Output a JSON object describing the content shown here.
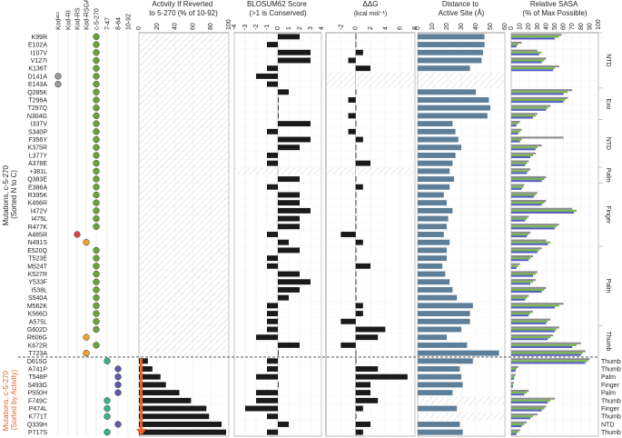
{
  "chart_data": {
    "type": "bar",
    "y_axis_title": "Mutations, c-5-270 (Sorted N to C)",
    "y_axis_title_lines": [
      "Mutations, c-5-270",
      "(Sorted N to C)"
    ],
    "y_axis_title_bottom": "Mutations, c-5-270 (Sorted by Activity)",
    "y_axis_title_bottom_lines": [
      "Mutations, c-5-270",
      "(Sorted by Activity)"
    ],
    "mutations": [
      "K99R",
      "E102A",
      "I107V",
      "V127I",
      "K136T",
      "D141A",
      "E143A",
      "Q285K",
      "T296A",
      "T297Q",
      "N304G",
      "I337V",
      "S340P",
      "F356Y",
      "K375R",
      "L377Y",
      "A378E",
      "+381L",
      "Q383E",
      "E386A",
      "R395K",
      "K466R",
      "I472V",
      "I475L",
      "R477K",
      "A485R",
      "N491S",
      "E520Q",
      "T523E",
      "M524T",
      "K527R",
      "Y533F",
      "I538L",
      "S540A",
      "M562K",
      "K566D",
      "A575L",
      "G602D",
      "R606G",
      "K672R",
      "T723A",
      "D615G",
      "A741P",
      "T548P",
      "S493G",
      "P550H",
      "F749C",
      "P474L",
      "K771T",
      "Q339H",
      "P717S"
    ],
    "lineage_columns": [
      "Kodᵃᶜᶜ",
      "Kod-RI",
      "Kod-RS",
      "Kod-RSGA",
      "c-5-270",
      "7-47",
      "8-64",
      "10-92"
    ],
    "lineage_marks": [
      [
        "",
        "",
        "",
        "",
        "green",
        "",
        "",
        ""
      ],
      [
        "",
        "",
        "",
        "",
        "green",
        "",
        "",
        ""
      ],
      [
        "",
        "",
        "",
        "",
        "green",
        "",
        "",
        ""
      ],
      [
        "",
        "",
        "",
        "",
        "green",
        "",
        "",
        ""
      ],
      [
        "",
        "",
        "",
        "",
        "green",
        "",
        "",
        ""
      ],
      [
        "gray",
        "",
        "",
        "",
        "green",
        "",
        "",
        ""
      ],
      [
        "gray",
        "",
        "",
        "",
        "green",
        "",
        "",
        ""
      ],
      [
        "",
        "",
        "",
        "",
        "green",
        "",
        "",
        ""
      ],
      [
        "",
        "",
        "",
        "",
        "green",
        "",
        "",
        ""
      ],
      [
        "",
        "",
        "",
        "",
        "green",
        "",
        "",
        ""
      ],
      [
        "",
        "",
        "",
        "",
        "green",
        "",
        "",
        ""
      ],
      [
        "",
        "",
        "",
        "",
        "green",
        "",
        "",
        ""
      ],
      [
        "",
        "",
        "",
        "",
        "green",
        "",
        "",
        ""
      ],
      [
        "",
        "",
        "",
        "",
        "green",
        "",
        "",
        ""
      ],
      [
        "",
        "",
        "",
        "",
        "green",
        "",
        "",
        ""
      ],
      [
        "",
        "",
        "",
        "",
        "green",
        "",
        "",
        ""
      ],
      [
        "",
        "",
        "",
        "",
        "green",
        "",
        "",
        ""
      ],
      [
        "",
        "",
        "",
        "",
        "green",
        "",
        "",
        ""
      ],
      [
        "",
        "",
        "",
        "",
        "green",
        "",
        "",
        ""
      ],
      [
        "",
        "",
        "",
        "",
        "green",
        "",
        "",
        ""
      ],
      [
        "",
        "",
        "",
        "",
        "green",
        "",
        "",
        ""
      ],
      [
        "",
        "",
        "",
        "",
        "green",
        "",
        "",
        ""
      ],
      [
        "",
        "",
        "",
        "",
        "green",
        "",
        "",
        ""
      ],
      [
        "",
        "",
        "",
        "",
        "green",
        "",
        "",
        ""
      ],
      [
        "",
        "",
        "",
        "",
        "green",
        "",
        "",
        ""
      ],
      [
        "",
        "",
        "red",
        "",
        "",
        "",
        "",
        ""
      ],
      [
        "",
        "",
        "",
        "orange",
        "",
        "",
        "",
        ""
      ],
      [
        "",
        "",
        "",
        "",
        "green",
        "",
        "",
        ""
      ],
      [
        "",
        "",
        "",
        "",
        "green",
        "",
        "",
        ""
      ],
      [
        "",
        "",
        "",
        "",
        "green",
        "",
        "",
        ""
      ],
      [
        "",
        "",
        "",
        "",
        "green",
        "",
        "",
        ""
      ],
      [
        "",
        "",
        "",
        "",
        "green",
        "",
        "",
        ""
      ],
      [
        "",
        "",
        "",
        "",
        "green",
        "",
        "",
        ""
      ],
      [
        "",
        "",
        "",
        "",
        "green",
        "",
        "",
        ""
      ],
      [
        "",
        "",
        "",
        "",
        "green",
        "",
        "",
        ""
      ],
      [
        "",
        "",
        "",
        "",
        "green",
        "",
        "",
        ""
      ],
      [
        "",
        "",
        "",
        "",
        "green",
        "",
        "",
        ""
      ],
      [
        "",
        "",
        "",
        "",
        "green",
        "",
        "",
        ""
      ],
      [
        "",
        "",
        "",
        "orange",
        "",
        "",
        "",
        ""
      ],
      [
        "",
        "",
        "",
        "",
        "green",
        "",
        "",
        ""
      ],
      [
        "",
        "",
        "",
        "orange",
        "",
        "",
        "",
        ""
      ],
      [
        "",
        "",
        "",
        "",
        "",
        "teal",
        "",
        ""
      ],
      [
        "",
        "",
        "",
        "",
        "",
        "",
        "purple",
        ""
      ],
      [
        "",
        "",
        "",
        "",
        "",
        "",
        "purple",
        ""
      ],
      [
        "",
        "",
        "",
        "",
        "",
        "",
        "purple",
        ""
      ],
      [
        "",
        "",
        "",
        "",
        "",
        "",
        "purple",
        ""
      ],
      [
        "",
        "",
        "",
        "",
        "",
        "teal",
        "",
        ""
      ],
      [
        "",
        "",
        "",
        "",
        "",
        "teal",
        "",
        ""
      ],
      [
        "",
        "",
        "",
        "",
        "",
        "teal",
        "",
        ""
      ],
      [
        "",
        "",
        "",
        "",
        "",
        "",
        "purple",
        ""
      ],
      [
        "",
        "",
        "",
        "",
        "",
        "teal",
        "",
        ""
      ]
    ],
    "activity": {
      "title": "Activity if Reverted to 5-270 (% of 10-92)",
      "title_lines": [
        "Activity If Reverted",
        "to 5-270 (% of 10-92)"
      ],
      "xlim": [
        0,
        100
      ],
      "ticks": [
        0,
        20,
        40,
        60,
        80,
        100
      ],
      "values": [
        null,
        null,
        null,
        null,
        null,
        null,
        null,
        null,
        null,
        null,
        null,
        null,
        null,
        null,
        null,
        null,
        null,
        null,
        null,
        null,
        null,
        null,
        null,
        null,
        null,
        null,
        null,
        null,
        null,
        null,
        null,
        null,
        null,
        null,
        null,
        null,
        null,
        null,
        null,
        null,
        null,
        10,
        15,
        24,
        30,
        45,
        58,
        75,
        78,
        92,
        97
      ]
    },
    "blosum": {
      "title": "BLOSUM62 Score (>1 is Conserved)",
      "title_lines": [
        "BLOSUM62 Score",
        "(>1 is Conserved)"
      ],
      "xlim": [
        -4,
        4
      ],
      "ticks": [
        -4,
        -3,
        -2,
        -1,
        0,
        1,
        2,
        3,
        4
      ],
      "values": [
        2,
        -1,
        3,
        3,
        -1,
        -2,
        -1,
        1,
        0,
        0,
        0,
        3,
        -1,
        3,
        2,
        -1,
        -1,
        null,
        2,
        -1,
        2,
        2,
        3,
        2,
        2,
        -1,
        1,
        2,
        -1,
        -1,
        2,
        3,
        2,
        1,
        -1,
        -1,
        -1,
        -1,
        -2,
        2,
        0,
        -1,
        -1,
        -2,
        0,
        -2,
        -2,
        -3,
        -1,
        1,
        -1
      ]
    },
    "ddg": {
      "title": "ΔΔG",
      "unit": "(kcal mol⁻¹)",
      "xlim": [
        -4,
        8
      ],
      "ticks": [
        -2,
        0,
        2,
        4,
        6,
        8
      ],
      "values": [
        0,
        0,
        1,
        -1,
        2,
        null,
        null,
        0,
        -1,
        0,
        -1,
        0,
        -1,
        1,
        0,
        0,
        2,
        null,
        0,
        1,
        0,
        0,
        0,
        0,
        0,
        -2,
        1,
        0,
        0,
        2,
        0,
        0,
        0,
        0,
        1,
        1,
        -2,
        4,
        3,
        -2,
        0,
        0,
        3,
        7,
        2,
        2,
        3,
        1,
        0,
        2,
        1
      ]
    },
    "distance": {
      "title": "Distance to Active Site (Å)",
      "title_lines": [
        "Distance to",
        "Active Site (Å)"
      ],
      "xlim": [
        0,
        60
      ],
      "ticks": [
        0,
        10,
        20,
        30,
        40,
        50,
        60
      ],
      "values": [
        46,
        46,
        45,
        44,
        36,
        null,
        null,
        40,
        49,
        50,
        48,
        24,
        26,
        28,
        30,
        26,
        24,
        22,
        25,
        22,
        18,
        20,
        24,
        21,
        20,
        18,
        22,
        20,
        20,
        17,
        19,
        22,
        24,
        27,
        38,
        36,
        36,
        30,
        20,
        34,
        56,
        38,
        29,
        30,
        31,
        24,
        null,
        27,
        null,
        29,
        31
      ]
    },
    "sasa": {
      "title": "Relative SASA (% of Max Possible)",
      "title_lines": [
        "Relative SASA",
        "(% of Max Possible)"
      ],
      "xlim": [
        0,
        100
      ],
      "ticks": [
        0,
        10,
        20,
        30,
        40,
        50,
        60,
        70,
        80,
        90,
        100
      ],
      "series": [
        {
          "name": "Kod",
          "color": "#8a8a8a",
          "values": [
            58,
            12,
            30,
            40,
            55,
            null,
            null,
            70,
            65,
            45,
            30,
            10,
            12,
            60,
            35,
            28,
            20,
            22,
            40,
            15,
            30,
            40,
            70,
            20,
            55,
            22,
            40,
            35,
            25,
            10,
            30,
            28,
            40,
            20,
            60,
            25,
            45,
            55,
            48,
            80,
            85,
            90,
            8,
            5,
            3,
            20,
            50,
            40,
            30,
            18,
            10
          ]
        },
        {
          "name": "c-5-270",
          "color": "#78b84c",
          "values": [
            55,
            8,
            35,
            38,
            50,
            null,
            null,
            65,
            62,
            42,
            28,
            8,
            10,
            12,
            30,
            25,
            18,
            20,
            38,
            14,
            28,
            38,
            75,
            18,
            52,
            20,
            45,
            32,
            22,
            8,
            28,
            25,
            38,
            18,
            55,
            22,
            42,
            52,
            45,
            75,
            82,
            88,
            6,
            4,
            2,
            18,
            45,
            38,
            25,
            15,
            8
          ]
        },
        {
          "name": "10-92",
          "color": "#5560c0",
          "values": [
            50,
            6,
            32,
            35,
            48,
            null,
            null,
            60,
            60,
            40,
            25,
            6,
            8,
            10,
            28,
            22,
            16,
            18,
            35,
            12,
            26,
            35,
            72,
            16,
            50,
            18,
            42,
            30,
            20,
            6,
            25,
            22,
            35,
            16,
            50,
            20,
            40,
            50,
            42,
            70,
            80,
            85,
            5,
            3,
            2,
            15,
            42,
            35,
            22,
            12,
            6
          ]
        }
      ]
    },
    "domains_top": [
      {
        "label": "NTD",
        "start": 0,
        "end": 6
      },
      {
        "label": "Exo",
        "start": 7,
        "end": 10
      },
      {
        "label": "NTD",
        "start": 11,
        "end": 16
      },
      {
        "label": "Palm",
        "start": 17,
        "end": 18
      },
      {
        "label": "Finger",
        "start": 19,
        "end": 26
      },
      {
        "label": "Palm",
        "start": 27,
        "end": 36
      },
      {
        "label": "Thumb",
        "start": 37,
        "end": 40
      }
    ],
    "domains_bottom": [
      "Thumb",
      "Thumb",
      "Palm",
      "Finger",
      "Palm",
      "Thumb",
      "Finger",
      "Thumb",
      "NTD",
      "Thumb"
    ],
    "grid": true
  }
}
